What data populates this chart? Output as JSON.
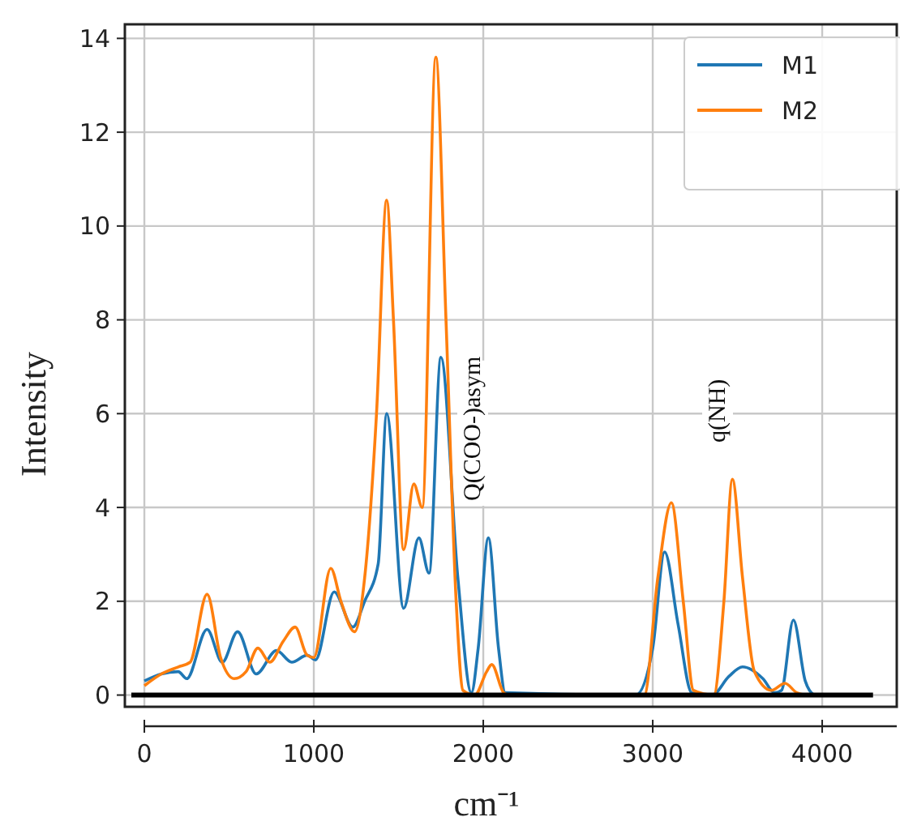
{
  "chart_data": {
    "type": "line",
    "xlabel": "cm⁻¹",
    "ylabel": "Intensity",
    "xlim": [
      -115,
      4440
    ],
    "xticks": [
      0,
      1000,
      2000,
      3000,
      4000
    ],
    "ylim": [
      -0.25,
      14.3
    ],
    "yticks": [
      0,
      2,
      4,
      6,
      8,
      10,
      12,
      14
    ],
    "grid": true,
    "legend": "top right",
    "line_style": "solid",
    "marker": "none",
    "ref_lines": [
      {
        "axis": "y",
        "value": 0,
        "color": "#000000"
      }
    ],
    "annotations": [
      "Q(COO-)asym",
      "q(NH)"
    ],
    "series": [
      {
        "name": "M1",
        "color": "#1f77b4",
        "x": [
          0,
          100,
          200,
          250,
          370,
          460,
          550,
          660,
          780,
          870,
          960,
          1010,
          1120,
          1230,
          1300,
          1380,
          1430,
          1530,
          1620,
          1680,
          1750,
          1850,
          1930,
          1970,
          2030,
          2090,
          2130,
          2900,
          3000,
          3070,
          3150,
          3230,
          3350,
          3450,
          3530,
          3650,
          3720,
          3760,
          3830,
          3900,
          3950
        ],
        "values": [
          0.3,
          0.45,
          0.5,
          0.35,
          1.4,
          0.7,
          1.35,
          0.45,
          0.95,
          0.7,
          0.85,
          0.75,
          2.2,
          1.45,
          2.0,
          2.8,
          6.0,
          1.85,
          3.35,
          2.6,
          7.2,
          2.5,
          0.05,
          1.0,
          3.35,
          1.0,
          0.05,
          0,
          1.0,
          3.05,
          1.5,
          0.05,
          0,
          0.4,
          0.6,
          0.35,
          0.05,
          0.1,
          1.6,
          0.3,
          0
        ]
      },
      {
        "name": "M2",
        "color": "#ff7f0e",
        "x": [
          0,
          100,
          200,
          270,
          370,
          450,
          530,
          600,
          670,
          740,
          820,
          890,
          960,
          1000,
          1100,
          1160,
          1240,
          1300,
          1370,
          1430,
          1470,
          1530,
          1590,
          1640,
          1720,
          1780,
          1840,
          1880,
          1950,
          2020,
          2050,
          2120,
          2150,
          2950,
          3030,
          3110,
          3180,
          3240,
          3360,
          3420,
          3470,
          3530,
          3600,
          3700,
          3780,
          3850,
          3900
        ],
        "values": [
          0.2,
          0.45,
          0.6,
          0.7,
          2.15,
          0.8,
          0.35,
          0.5,
          1.0,
          0.7,
          1.15,
          1.45,
          0.85,
          0.8,
          2.7,
          2.0,
          1.35,
          2.5,
          6.0,
          10.55,
          8.0,
          3.1,
          4.5,
          4.0,
          13.6,
          8.0,
          2.0,
          0.1,
          0,
          0.5,
          0.65,
          0.05,
          0,
          0,
          2.5,
          4.1,
          2.0,
          0.1,
          0,
          2.0,
          4.6,
          2.5,
          0.5,
          0.1,
          0.25,
          0.05,
          0
        ]
      }
    ]
  }
}
